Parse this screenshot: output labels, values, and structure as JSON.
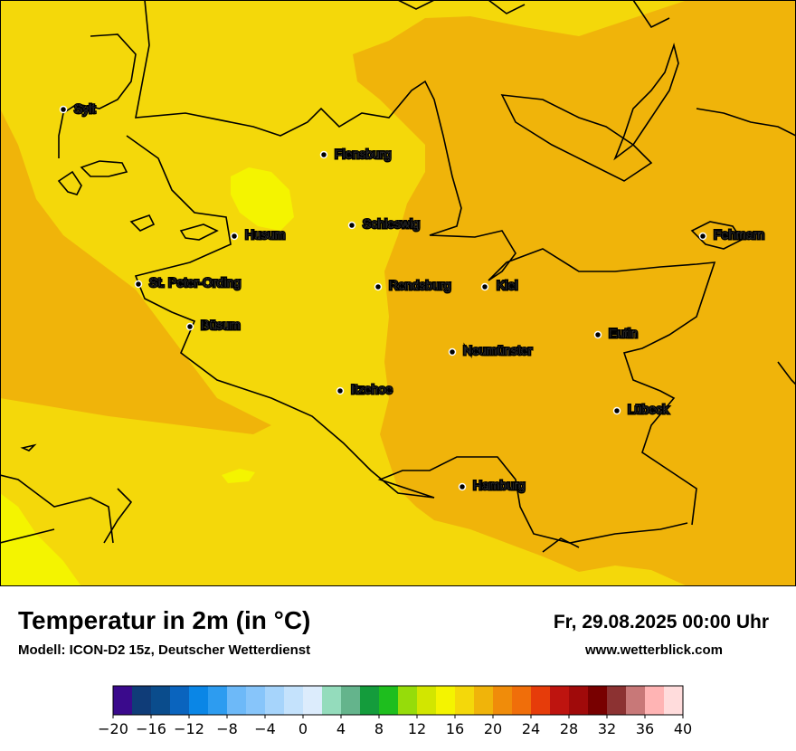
{
  "title": "Temperatur in 2m (in °C)",
  "model": "Modell: ICON-D2 15z, Deutscher Wetterdienst",
  "datetime": "Fr, 29.08.2025 00:00 Uhr",
  "website": "www.wetterblick.com",
  "cities": [
    {
      "name": "Sylt"
    },
    {
      "name": "Flensburg"
    },
    {
      "name": "Schleswig"
    },
    {
      "name": "Husum"
    },
    {
      "name": "Fehmarn"
    },
    {
      "name": "St. Peter-Ording"
    },
    {
      "name": "Rendsburg"
    },
    {
      "name": "Kiel"
    },
    {
      "name": "Büsum"
    },
    {
      "name": "Eutin"
    },
    {
      "name": "Neumünster"
    },
    {
      "name": "Itzehoe"
    },
    {
      "name": "Lübeck"
    },
    {
      "name": "Hamburg"
    }
  ],
  "legend": {
    "ticks": [
      "−20",
      "−16",
      "−12",
      "−8",
      "−4",
      "0",
      "4",
      "8",
      "12",
      "16",
      "20",
      "24",
      "28",
      "32",
      "36",
      "40"
    ],
    "colors": [
      "#3a0a8c",
      "#0f3c78",
      "#0a4c8c",
      "#0a64be",
      "#0a86e6",
      "#2d9cf0",
      "#6db9f8",
      "#87c5fa",
      "#a6d4fb",
      "#c4e2fc",
      "#dcecfc",
      "#94dcbc",
      "#64b48c",
      "#149c3c",
      "#1ebe1e",
      "#96dc0a",
      "#d2e600",
      "#f4f400",
      "#f4d80a",
      "#f0b40a",
      "#f08c0a",
      "#f06e0a",
      "#e63c0a",
      "#be140f",
      "#a00a0a",
      "#780000",
      "#8c3232",
      "#c87878",
      "#ffb4b4",
      "#ffdcdc"
    ]
  }
}
